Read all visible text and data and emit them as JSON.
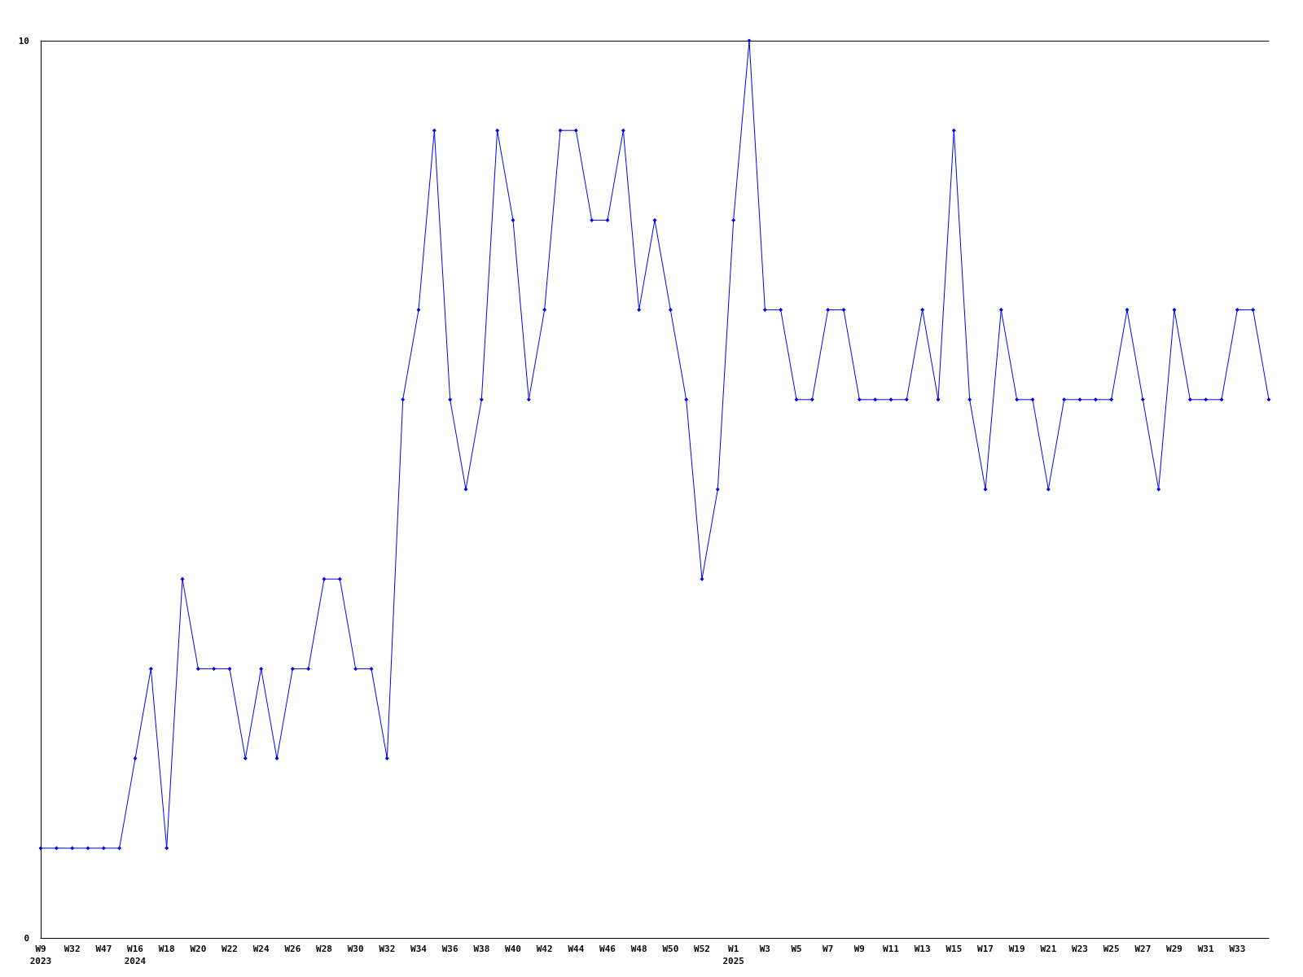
{
  "chart_data": {
    "type": "line",
    "categories": [
      "W9\n2023",
      null,
      "W32",
      null,
      "W47",
      null,
      "W16\n2024",
      null,
      "W18",
      null,
      "W20",
      null,
      "W22",
      null,
      "W24",
      null,
      "W26",
      null,
      "W28",
      null,
      "W30",
      null,
      "W32",
      null,
      "W34",
      null,
      "W36",
      null,
      "W38",
      null,
      "W40",
      null,
      "W42",
      null,
      "W44",
      null,
      "W46",
      null,
      "W48",
      null,
      "W50",
      null,
      "W52",
      null,
      "W1\n2025",
      null,
      "W3",
      null,
      "W5",
      null,
      "W7",
      null,
      "W9",
      null,
      "W11",
      null,
      "W13",
      null,
      "W15",
      null,
      "W17",
      null,
      "W19",
      null,
      "W21",
      null,
      "W23",
      null,
      "W25",
      null,
      "W27",
      null,
      "W29",
      null,
      "W31",
      null,
      "W33",
      null,
      null
    ],
    "series": [
      {
        "color": "#0000ff",
        "values": [
          1,
          1,
          1,
          1,
          1,
          1,
          2,
          3,
          1,
          4,
          3,
          3,
          3,
          2,
          3,
          2,
          3,
          3,
          4,
          4,
          3,
          3,
          2,
          6,
          7,
          9,
          6,
          5,
          6,
          9,
          8,
          6,
          7,
          9,
          9,
          8,
          8,
          9,
          7,
          8,
          7,
          6,
          4,
          5,
          8,
          10,
          7,
          7,
          6,
          6,
          7,
          7,
          6,
          6,
          6,
          6,
          7,
          6,
          9,
          6,
          5,
          7,
          6,
          6,
          5,
          6,
          6,
          6,
          6,
          7,
          6,
          5,
          7,
          6,
          6,
          6,
          7,
          7,
          6
        ]
      }
    ],
    "ylim": [
      0,
      10
    ],
    "yticks": [
      0,
      10
    ],
    "grid": false,
    "marker": "diamond",
    "line_style": "solid"
  }
}
